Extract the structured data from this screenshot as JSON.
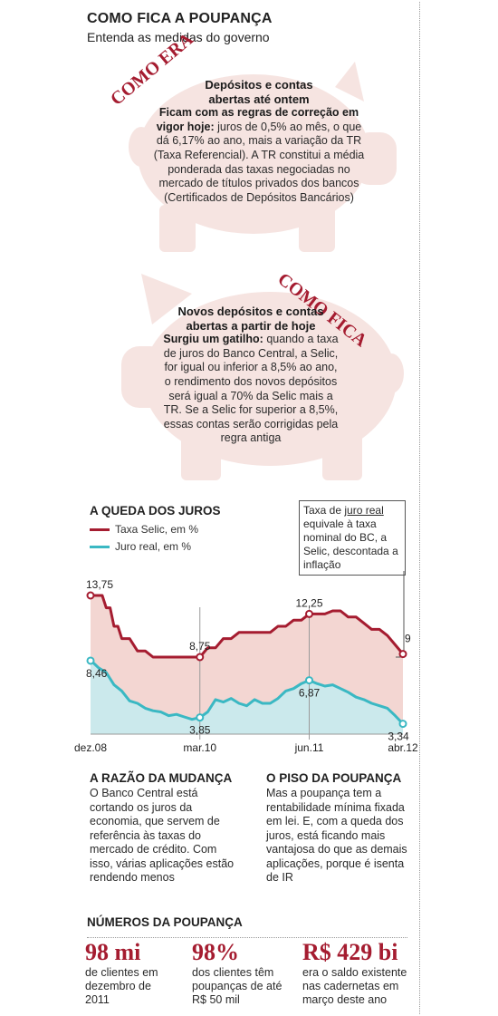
{
  "header": {
    "title": "COMO FICA A POUPANÇA",
    "subtitle": "Entenda as medidas do governo"
  },
  "colors": {
    "pig": "#f6e4e1",
    "accent": "#a51c30",
    "selic_line": "#a51c30",
    "real_line": "#3ab8c3",
    "selic_fill": "#f3d6d2",
    "real_fill": "#cbe9ec"
  },
  "before": {
    "stamp": "COMO ERA",
    "heading_line1": "Depósitos e contas",
    "heading_line2": "abertas até ontem",
    "lead": "Ficam com as regras de correção em vigor hoje:",
    "body": " juros de 0,5% ao mês, o que dá 6,17% ao ano, mais a variação da TR (Taxa Referencial). A TR constitui a média ponderada das taxas negociadas no mercado de títulos privados dos bancos (Certificados de Depósitos Bancários)"
  },
  "after": {
    "stamp": "COMO FICA",
    "heading_line1": "Novos depósitos e contas",
    "heading_line2": "abertas a partir de hoje",
    "lead": "Surgiu um gatilho:",
    "body": " quando a taxa de juros do Banco Central, a Selic, for igual ou inferior a 8,5% ao ano, o rendimento dos novos depósitos será igual a 70% da Selic mais a TR. Se a Selic for superior a 8,5%, essas contas serão corrigidas pela regra antiga"
  },
  "chart_note": {
    "pre": "Taxa de ",
    "highlight": "juro real",
    "post": " equivale à taxa nominal do BC, a Selic, descontada a inflação"
  },
  "chart_data": {
    "type": "line",
    "title": "A QUEDA DOS JUROS",
    "x_ticks": [
      "dez.08",
      "mar.10",
      "jun.11",
      "abr.12"
    ],
    "x_range": [
      0,
      40
    ],
    "y_range": [
      2.5,
      15
    ],
    "grid": false,
    "legend": "top-left",
    "series": [
      {
        "name": "Taxa Selic, em %",
        "color": "#a51c30",
        "x": [
          0,
          0.5,
          1,
          1.5,
          2,
          2.5,
          3,
          3.5,
          4,
          5,
          6,
          7,
          8,
          9,
          10,
          11,
          12,
          13,
          14,
          15,
          16,
          17,
          18,
          19,
          20,
          21,
          22,
          23,
          24,
          25,
          26,
          27,
          28,
          29,
          30,
          31,
          32,
          33,
          34,
          35,
          36,
          37,
          38,
          39,
          40
        ],
        "values": [
          13.75,
          13.75,
          13.75,
          13.75,
          12.75,
          12.75,
          11.25,
          11.25,
          10.25,
          10.25,
          9.25,
          9.25,
          8.75,
          8.75,
          8.75,
          8.75,
          8.75,
          8.75,
          8.75,
          9.5,
          9.5,
          10.25,
          10.25,
          10.75,
          10.75,
          10.75,
          10.75,
          10.75,
          11.25,
          11.25,
          11.75,
          11.75,
          12.25,
          12.25,
          12.25,
          12.5,
          12.5,
          12.0,
          12.0,
          11.5,
          11.0,
          11.0,
          10.5,
          9.75,
          9.0
        ],
        "labels": [
          {
            "text": "13,75",
            "x": 0,
            "value": 13.75,
            "marked": true,
            "pos": "above"
          },
          {
            "text": "8,75",
            "x": 14,
            "value": 8.75,
            "marked": true,
            "pos": "above"
          },
          {
            "text": "12,25",
            "x": 28,
            "value": 12.25,
            "marked": true,
            "pos": "above"
          },
          {
            "text": "9",
            "x": 40,
            "value": 9.0,
            "marked": true,
            "pos": "right-above"
          }
        ]
      },
      {
        "name": "Juro real, em %",
        "color": "#3ab8c3",
        "x": [
          0,
          0.5,
          1,
          2,
          3,
          4,
          5,
          6,
          7,
          8,
          9,
          10,
          11,
          12,
          13,
          14,
          15,
          16,
          17,
          18,
          19,
          20,
          21,
          22,
          23,
          24,
          25,
          26,
          27,
          28,
          29,
          30,
          31,
          32,
          33,
          34,
          35,
          36,
          37,
          38,
          39,
          40
        ],
        "values": [
          8.46,
          8.2,
          7.9,
          7.5,
          6.5,
          6.0,
          5.2,
          5.0,
          4.6,
          4.4,
          4.3,
          4.0,
          4.1,
          3.9,
          3.7,
          3.85,
          4.3,
          5.3,
          5.1,
          5.4,
          5.0,
          4.8,
          5.3,
          5.0,
          5.0,
          5.4,
          6.0,
          6.2,
          6.6,
          6.87,
          6.6,
          6.4,
          6.5,
          6.2,
          5.9,
          5.5,
          5.3,
          5.0,
          4.8,
          4.6,
          4.0,
          3.34
        ],
        "labels": [
          {
            "text": "8,46",
            "x": 0,
            "value": 8.46,
            "marked": true,
            "pos": "below"
          },
          {
            "text": "3,85",
            "x": 14,
            "value": 3.85,
            "marked": true,
            "pos": "below"
          },
          {
            "text": "6,87",
            "x": 28,
            "value": 6.87,
            "marked": true,
            "pos": "below"
          },
          {
            "text": "3,34",
            "x": 40,
            "value": 3.34,
            "marked": true,
            "pos": "below"
          }
        ]
      }
    ],
    "x_tick_positions": [
      0,
      14,
      28,
      40
    ]
  },
  "reason": {
    "heading": "A RAZÃO DA MUDANÇA",
    "text": "O Banco Central está cortando os juros da economia, que servem de referência às taxas do mercado de crédito. Com isso, várias aplicações estão rendendo menos"
  },
  "floor": {
    "heading": "O PISO DA POUPANÇA",
    "text": "Mas a poupança tem a rentabilidade mínima fixada em lei. E, com a queda dos juros, está ficando mais vantajosa do que as demais aplicações, porque é isenta de IR"
  },
  "numbers": {
    "heading": "NÚMEROS DA POUPANÇA",
    "items": [
      {
        "value": "98 mi",
        "text": "de clientes em dezembro de 2011"
      },
      {
        "value": "98%",
        "text": "dos clientes têm poupanças de até R$ 50 mil"
      },
      {
        "value": "R$ 429 bi",
        "text": "era o saldo existente nas cadernetas em março  deste ano"
      }
    ]
  }
}
